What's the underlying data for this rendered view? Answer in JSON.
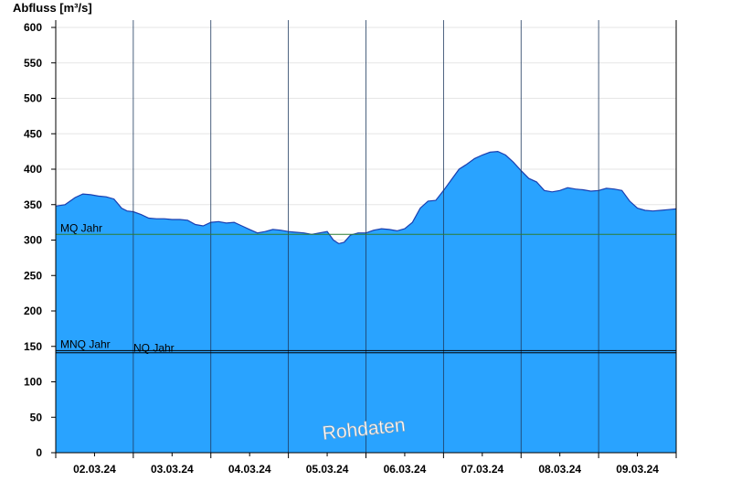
{
  "chart_data": {
    "type": "area",
    "ylabel": "Abfluss [m³/s]",
    "xlabel": "",
    "ylim": [
      0,
      600
    ],
    "yticks": [
      0,
      50,
      100,
      150,
      200,
      250,
      300,
      350,
      400,
      450,
      500,
      550,
      600
    ],
    "grid": true,
    "x_tick_labels": [
      "02.03.24",
      "03.03.24",
      "04.03.24",
      "05.03.24",
      "06.03.24",
      "07.03.24",
      "08.03.24",
      "09.03.24"
    ],
    "x_unit": "days",
    "x_start": 0,
    "x_end": 8,
    "x": [
      0,
      0.12,
      0.25,
      0.35,
      0.45,
      0.55,
      0.65,
      0.75,
      0.85,
      0.92,
      1.0,
      1.1,
      1.2,
      1.3,
      1.4,
      1.5,
      1.6,
      1.7,
      1.8,
      1.9,
      2.0,
      2.1,
      2.2,
      2.3,
      2.4,
      2.5,
      2.6,
      2.7,
      2.8,
      2.9,
      3.0,
      3.1,
      3.2,
      3.3,
      3.4,
      3.5,
      3.58,
      3.65,
      3.72,
      3.8,
      3.9,
      4.0,
      4.1,
      4.2,
      4.3,
      4.4,
      4.5,
      4.6,
      4.7,
      4.8,
      4.9,
      5.0,
      5.1,
      5.2,
      5.3,
      5.4,
      5.5,
      5.6,
      5.7,
      5.8,
      5.9,
      6.0,
      6.1,
      6.2,
      6.3,
      6.4,
      6.5,
      6.6,
      6.7,
      6.8,
      6.9,
      7.0,
      7.1,
      7.2,
      7.3,
      7.4,
      7.5,
      7.6,
      7.7,
      7.8,
      7.9,
      8.0
    ],
    "series": [
      {
        "values": [
          348,
          350,
          360,
          365,
          364,
          362,
          361,
          358,
          345,
          341,
          340,
          336,
          331,
          330,
          330,
          329,
          329,
          328,
          322,
          320,
          325,
          326,
          324,
          325,
          320,
          315,
          310,
          312,
          315,
          314,
          312,
          311,
          310,
          308,
          310,
          312,
          300,
          295,
          297,
          307,
          310,
          310,
          314,
          316,
          315,
          313,
          316,
          325,
          345,
          355,
          356,
          370,
          385,
          400,
          407,
          415,
          420,
          424,
          425,
          420,
          410,
          398,
          387,
          382,
          370,
          368,
          370,
          374,
          372,
          371,
          369,
          370,
          373,
          372,
          370,
          355,
          345,
          342,
          341,
          342,
          343,
          344
        ],
        "color": "#29a3ff"
      }
    ],
    "reference_lines": [
      {
        "name": "MQ Jahr",
        "value": 308,
        "color": "#2e7d32"
      },
      {
        "name": "MNQ Jahr",
        "value": 144,
        "color": "#000000"
      },
      {
        "name": "NQ Jahr",
        "value": 141,
        "color": "#000000"
      }
    ],
    "watermark": "Rohdaten",
    "fill_color": "#29a3ff",
    "outline_color": "#1a3fb0",
    "grid_color": "#e6e6e6"
  }
}
